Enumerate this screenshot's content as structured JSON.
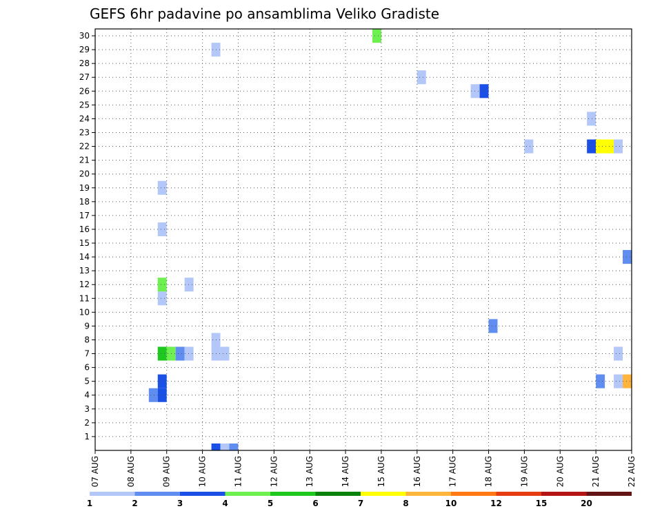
{
  "chart_data": {
    "type": "heatmap",
    "title": "GEFS 6hr padavine po ansamblima Veliko Gradiste",
    "xlabel": "",
    "ylabel": "",
    "x_tick_labels": [
      "07 AUG",
      "08 AUG",
      "09 AUG",
      "10 AUG",
      "11 AUG",
      "12 AUG",
      "13 AUG",
      "14 AUG",
      "15 AUG",
      "16 AUG",
      "17 AUG",
      "18 AUG",
      "19 AUG",
      "20 AUG",
      "21 AUG",
      "22 AUG"
    ],
    "y_tick_labels": [
      "1",
      "2",
      "3",
      "4",
      "5",
      "6",
      "7",
      "8",
      "9",
      "10",
      "11",
      "12",
      "13",
      "14",
      "15",
      "16",
      "17",
      "18",
      "19",
      "20",
      "21",
      "22",
      "23",
      "24",
      "25",
      "26",
      "27",
      "28",
      "29",
      "30"
    ],
    "x_range_days": [
      0,
      15
    ],
    "y_range": [
      0,
      30
    ],
    "time_step_hours": 6,
    "grid": true,
    "colorbar": {
      "placement": "bottom",
      "levels": [
        "1",
        "2",
        "3",
        "4",
        "5",
        "6",
        "7",
        "8",
        "10",
        "12",
        "15",
        "20"
      ],
      "colors": [
        "#b3c8f8",
        "#5f8ef0",
        "#1a50e6",
        "#6ef050",
        "#1ec81e",
        "#0a820a",
        "#ffff00",
        "#ffb43c",
        "#ff7814",
        "#e63c14",
        "#b41414",
        "#641414"
      ]
    },
    "values": [
      {
        "x": 1.625,
        "y": 4,
        "v": 2.5
      },
      {
        "x": 1.875,
        "y": 4,
        "v": 3.5
      },
      {
        "x": 1.875,
        "y": 5,
        "v": 3.5
      },
      {
        "x": 1.875,
        "y": 7,
        "v": 5.5
      },
      {
        "x": 2.125,
        "y": 7,
        "v": 4.5
      },
      {
        "x": 2.375,
        "y": 7,
        "v": 2.5
      },
      {
        "x": 2.625,
        "y": 7,
        "v": 1.5
      },
      {
        "x": 1.875,
        "y": 11,
        "v": 1.5
      },
      {
        "x": 1.875,
        "y": 12,
        "v": 4.5
      },
      {
        "x": 2.625,
        "y": 12,
        "v": 1.5
      },
      {
        "x": 1.875,
        "y": 16,
        "v": 1.5
      },
      {
        "x": 1.875,
        "y": 19,
        "v": 1.5
      },
      {
        "x": 3.375,
        "y": 0,
        "v": 3.5
      },
      {
        "x": 3.625,
        "y": 0,
        "v": 1.5
      },
      {
        "x": 3.875,
        "y": 0,
        "v": 2.5
      },
      {
        "x": 3.375,
        "y": 7,
        "v": 1.5
      },
      {
        "x": 3.625,
        "y": 7,
        "v": 1.5
      },
      {
        "x": 3.375,
        "y": 8,
        "v": 1.5
      },
      {
        "x": 3.375,
        "y": 29,
        "v": 1.5
      },
      {
        "x": 7.875,
        "y": 30,
        "v": 4.5
      },
      {
        "x": 9.125,
        "y": 27,
        "v": 1.5
      },
      {
        "x": 10.625,
        "y": 26,
        "v": 1.5
      },
      {
        "x": 10.875,
        "y": 26,
        "v": 3.5
      },
      {
        "x": 11.125,
        "y": 9,
        "v": 2.5
      },
      {
        "x": 12.125,
        "y": 22,
        "v": 1.5
      },
      {
        "x": 13.875,
        "y": 22,
        "v": 3.5
      },
      {
        "x": 14.125,
        "y": 22,
        "v": 7.5
      },
      {
        "x": 14.375,
        "y": 22,
        "v": 7.5
      },
      {
        "x": 14.625,
        "y": 22,
        "v": 1.5
      },
      {
        "x": 13.875,
        "y": 24,
        "v": 1.5
      },
      {
        "x": 14.125,
        "y": 5,
        "v": 2.5
      },
      {
        "x": 14.625,
        "y": 5,
        "v": 1.5
      },
      {
        "x": 14.875,
        "y": 5,
        "v": 8.5
      },
      {
        "x": 14.625,
        "y": 7,
        "v": 1.5
      },
      {
        "x": 14.875,
        "y": 14,
        "v": 2.5
      }
    ]
  }
}
